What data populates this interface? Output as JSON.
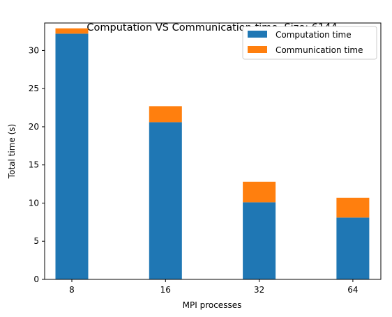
{
  "chart_data": {
    "type": "bar",
    "stacked": true,
    "title": "Computation VS Communication time, Size: 6144",
    "xlabel": "MPI processes",
    "ylabel": "Total time (s)",
    "categories": [
      "8",
      "16",
      "32",
      "64"
    ],
    "ylim": [
      0,
      33.6
    ],
    "yticks": [
      "0",
      "5",
      "10",
      "15",
      "20",
      "25",
      "30"
    ],
    "series": [
      {
        "name": "Computation time",
        "color": "#1f77b4",
        "values": [
          32.2,
          20.6,
          10.1,
          8.1
        ]
      },
      {
        "name": "Communication time",
        "color": "#ff7f0e",
        "values": [
          0.7,
          2.1,
          2.7,
          2.6
        ]
      }
    ],
    "legend": "top-right",
    "grid": false
  }
}
